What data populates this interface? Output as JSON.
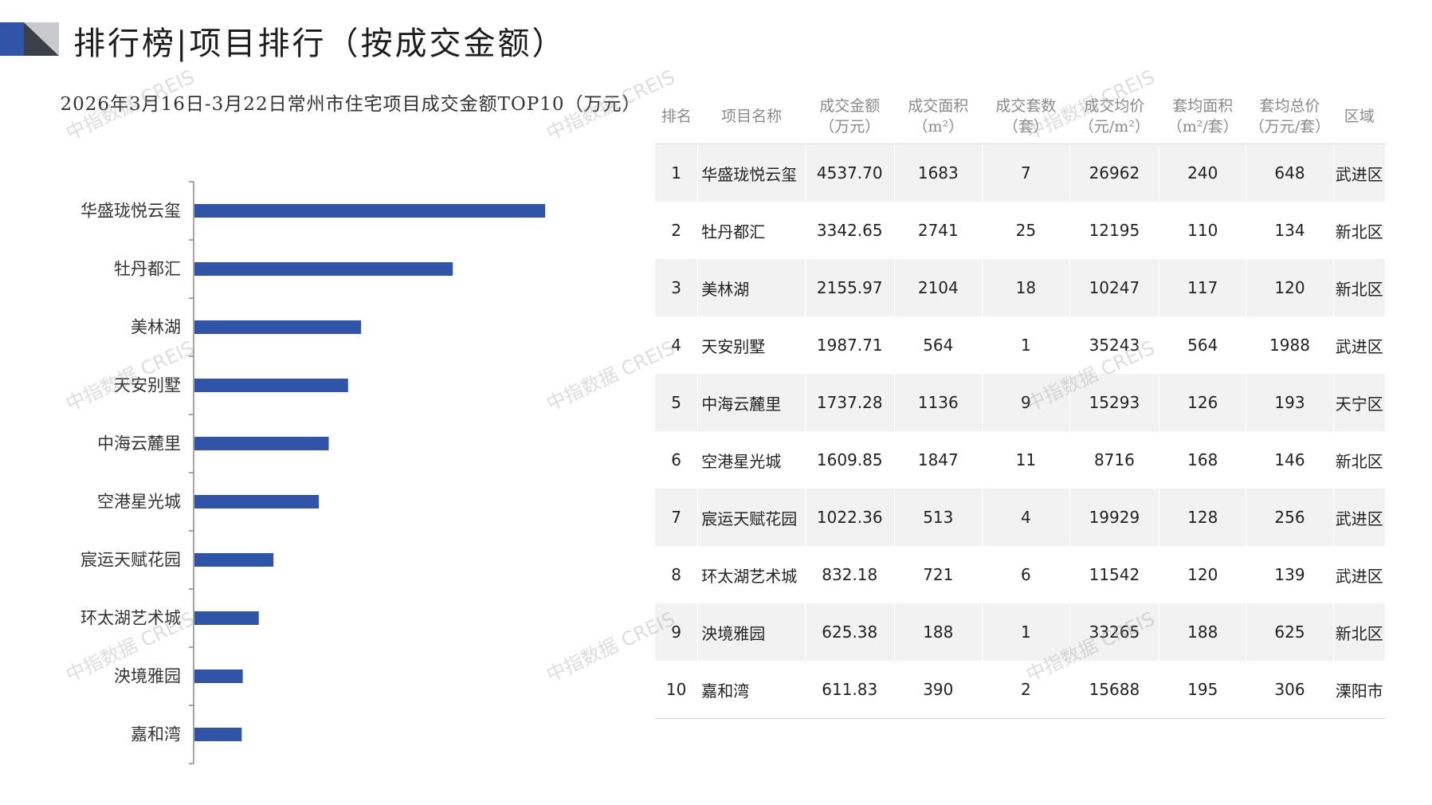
{
  "page": {
    "title": "排行榜|项目排行（按成交金额）"
  },
  "watermark": "中指数据 CREIS",
  "chart_data": {
    "type": "bar",
    "orientation": "horizontal",
    "title": "2026年3月16日-3月22日常州市住宅项目成交金额TOP10（万元）",
    "categories": [
      "华盛珑悦云玺",
      "牡丹都汇",
      "美林湖",
      "天安别墅",
      "中海云麓里",
      "空港星光城",
      "宸运天赋花园",
      "环太湖艺术城",
      "泱境雅园",
      "嘉和湾"
    ],
    "values": [
      4537.7,
      3342.65,
      2155.97,
      1987.71,
      1737.28,
      1609.85,
      1022.36,
      832.18,
      625.38,
      611.83
    ],
    "xlim": [
      0,
      5000
    ],
    "bar_color": "#2f54a8",
    "axis_color": "#888888",
    "grid": false,
    "legend": "none"
  },
  "table": {
    "headers": [
      [
        "排名"
      ],
      [
        "项目名称"
      ],
      [
        "成交金额",
        "（万元）"
      ],
      [
        "成交面积",
        "（m²）"
      ],
      [
        "成交套数",
        "（套）"
      ],
      [
        "成交均价",
        "（元/m²）"
      ],
      [
        "套均面积",
        "（m²/套）"
      ],
      [
        "套均总价",
        "（万元/套）"
      ],
      [
        "区域"
      ]
    ],
    "rows": [
      [
        "1",
        "华盛珑悦云玺",
        "4537.70",
        "1683",
        "7",
        "26962",
        "240",
        "648",
        "武进区"
      ],
      [
        "2",
        "牡丹都汇",
        "3342.65",
        "2741",
        "25",
        "12195",
        "110",
        "134",
        "新北区"
      ],
      [
        "3",
        "美林湖",
        "2155.97",
        "2104",
        "18",
        "10247",
        "117",
        "120",
        "新北区"
      ],
      [
        "4",
        "天安别墅",
        "1987.71",
        "564",
        "1",
        "35243",
        "564",
        "1988",
        "武进区"
      ],
      [
        "5",
        "中海云麓里",
        "1737.28",
        "1136",
        "9",
        "15293",
        "126",
        "193",
        "天宁区"
      ],
      [
        "6",
        "空港星光城",
        "1609.85",
        "1847",
        "11",
        "8716",
        "168",
        "146",
        "新北区"
      ],
      [
        "7",
        "宸运天赋花园",
        "1022.36",
        "513",
        "4",
        "19929",
        "128",
        "256",
        "武进区"
      ],
      [
        "8",
        "环太湖艺术城",
        "832.18",
        "721",
        "6",
        "11542",
        "120",
        "139",
        "武进区"
      ],
      [
        "9",
        "泱境雅园",
        "625.38",
        "188",
        "1",
        "33265",
        "188",
        "625",
        "新北区"
      ],
      [
        "10",
        "嘉和湾",
        "611.83",
        "390",
        "2",
        "15688",
        "195",
        "306",
        "溧阳市"
      ]
    ]
  },
  "colors": {
    "accent_blue": "#2f54a8",
    "logo_gray": "#c7c9cc",
    "row_shade": "#f2f2f2"
  }
}
